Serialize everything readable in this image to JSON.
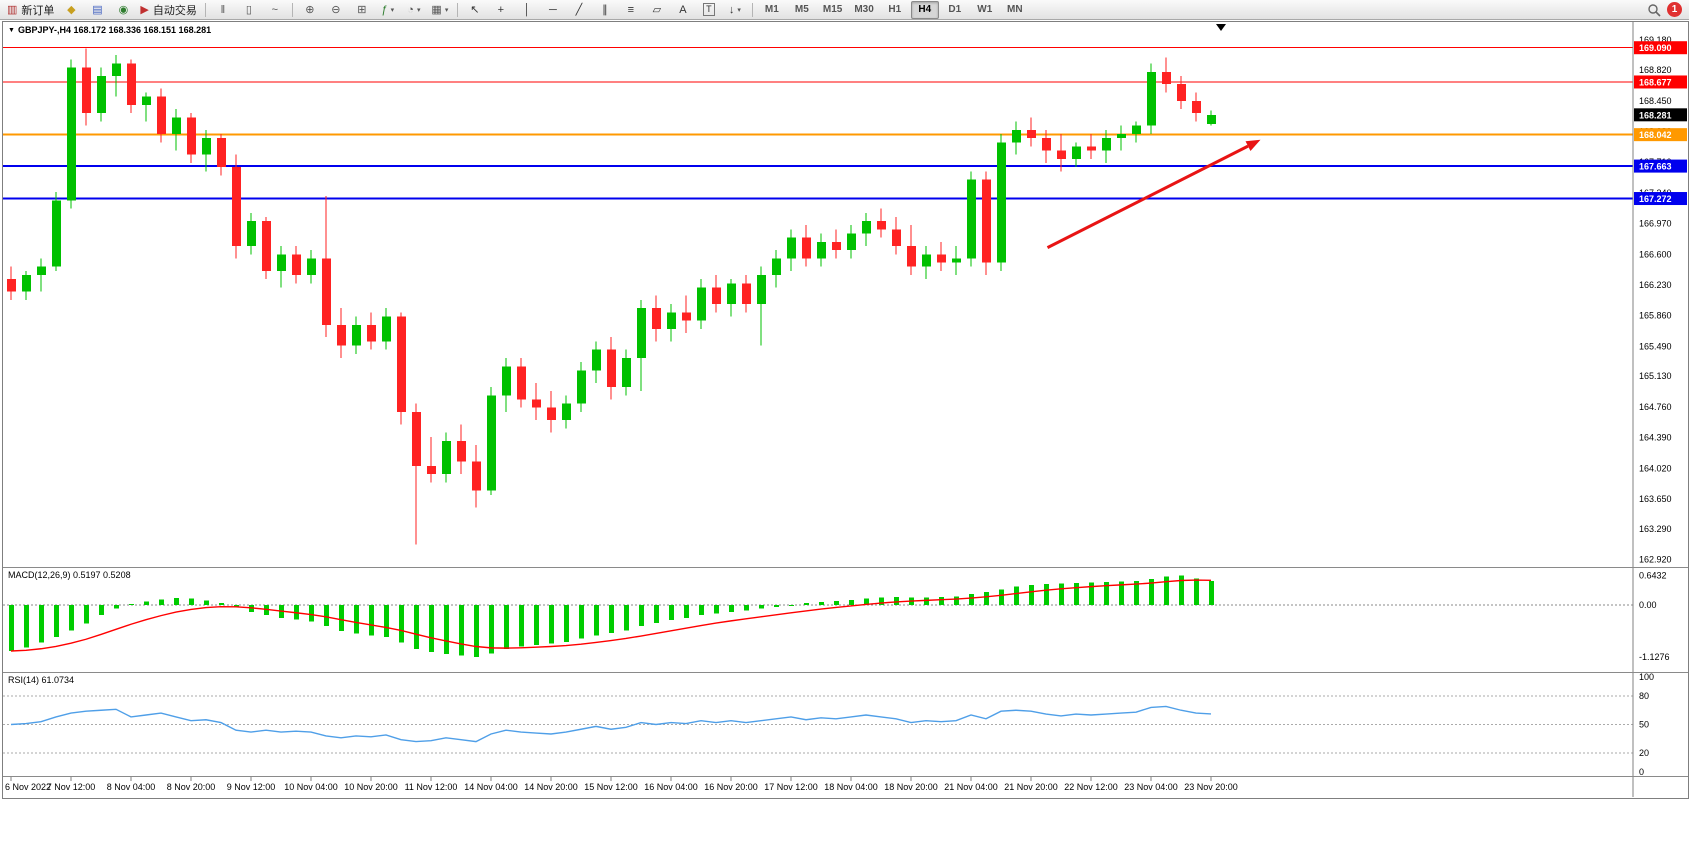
{
  "toolbar": {
    "notification_count": "1",
    "timeframes": [
      "M1",
      "M5",
      "M15",
      "M30",
      "H1",
      "H4",
      "D1",
      "W1",
      "MN"
    ],
    "active_timeframe": "H4",
    "items": [
      {
        "n": "new-order-button",
        "g": "▥",
        "c": "#b03030",
        "label": "新订单"
      },
      {
        "n": "chart-profiles-button",
        "g": "◆",
        "c": "#c8a020"
      },
      {
        "n": "data-window-button",
        "g": "▤",
        "c": "#4060c0"
      },
      {
        "n": "sound-alert-button",
        "g": "◉",
        "c": "#2f7d2f"
      },
      {
        "n": "autotrading-button",
        "g": "▶",
        "c": "#c03030",
        "label": "自动交易"
      },
      {
        "sep": true
      },
      {
        "n": "bars-chart-button",
        "g": "‖",
        "c": "#555555"
      },
      {
        "n": "candlestick-chart-button",
        "g": "▯",
        "c": "#555555"
      },
      {
        "n": "line-chart-button",
        "g": "~",
        "c": "#555555"
      },
      {
        "sep": true
      },
      {
        "n": "zoom-in-button",
        "g": "⊕",
        "c": "#555555"
      },
      {
        "n": "zoom-out-button",
        "g": "⊖",
        "c": "#555555"
      },
      {
        "n": "tile-windows-button",
        "g": "⊞",
        "c": "#555555"
      },
      {
        "n": "indicators-button",
        "g": "ƒ",
        "c": "#2f7d2f",
        "dd": true
      },
      {
        "n": "periods-button",
        "g": "◔",
        "c": "#555555",
        "dd": true
      },
      {
        "n": "templates-button",
        "g": "▦",
        "c": "#555555",
        "dd": true
      },
      {
        "sep": true
      },
      {
        "n": "cursor-button",
        "g": "↖",
        "c": "#333333"
      },
      {
        "n": "crosshair-button",
        "g": "+",
        "c": "#333333"
      },
      {
        "n": "vertical-line-button",
        "g": "│",
        "c": "#333333"
      },
      {
        "n": "horizontal-line-button",
        "g": "─",
        "c": "#333333"
      },
      {
        "n": "trendline-button",
        "g": "╱",
        "c": "#333333"
      },
      {
        "n": "channel-button",
        "g": "∥",
        "c": "#333333"
      },
      {
        "n": "fibonacci-button",
        "g": "≡",
        "c": "#333333"
      },
      {
        "n": "shapes-button",
        "g": "▱",
        "c": "#333333"
      },
      {
        "n": "text-button",
        "g": "A",
        "c": "#333333"
      },
      {
        "n": "text-label-button",
        "g": "T",
        "c": "#333333",
        "boxed": true
      },
      {
        "n": "arrows-button",
        "g": "↓",
        "c": "#333333",
        "dd": true
      },
      {
        "sep": true
      }
    ]
  },
  "chart": {
    "title": "GBPJPY-,H4  168.172 168.336 168.151 168.281"
  },
  "chart_data": {
    "type": "candlestick",
    "symbol": "GBPJPY-",
    "period": "H4",
    "current_ohlc": {
      "open": 168.172,
      "high": 168.336,
      "low": 168.151,
      "close": 168.281
    },
    "colors": {
      "up": "#00c000",
      "down": "#ff2222",
      "macd_histogram": "#00cc00",
      "macd_signal": "#ff0000",
      "rsi_line": "#4f9fe8"
    },
    "price_axis": {
      "max": 169.4,
      "min": 162.83,
      "labels": [
        "169.180",
        "168.820",
        "168.450",
        "168.080",
        "167.710",
        "167.340",
        "166.970",
        "166.600",
        "166.230",
        "165.860",
        "165.490",
        "165.130",
        "164.760",
        "164.390",
        "164.020",
        "163.650",
        "163.290",
        "162.920"
      ]
    },
    "x_labels": [
      "6 Nov 2022",
      "7 Nov 12:00",
      "8 Nov 04:00",
      "8 Nov 20:00",
      "9 Nov 12:00",
      "10 Nov 04:00",
      "10 Nov 20:00",
      "11 Nov 12:00",
      "14 Nov 04:00",
      "14 Nov 20:00",
      "15 Nov 12:00",
      "16 Nov 04:00",
      "16 Nov 20:00",
      "17 Nov 12:00",
      "18 Nov 04:00",
      "18 Nov 20:00",
      "21 Nov 04:00",
      "21 Nov 20:00",
      "22 Nov 12:00",
      "23 Nov 04:00",
      "23 Nov 20:00"
    ],
    "bars_per_label": 4,
    "candles": [
      [
        166.3,
        166.45,
        166.05,
        166.15
      ],
      [
        166.15,
        166.4,
        166.05,
        166.35
      ],
      [
        166.35,
        166.55,
        166.15,
        166.45
      ],
      [
        166.45,
        167.35,
        166.4,
        167.25
      ],
      [
        167.25,
        168.95,
        167.15,
        168.85
      ],
      [
        168.85,
        169.08,
        168.15,
        168.3
      ],
      [
        168.3,
        168.85,
        168.2,
        168.75
      ],
      [
        168.75,
        169.0,
        168.5,
        168.9
      ],
      [
        168.9,
        168.95,
        168.3,
        168.4
      ],
      [
        168.4,
        168.55,
        168.2,
        168.5
      ],
      [
        168.5,
        168.6,
        167.95,
        168.05
      ],
      [
        168.05,
        168.35,
        167.85,
        168.25
      ],
      [
        168.25,
        168.3,
        167.7,
        167.8
      ],
      [
        167.8,
        168.1,
        167.6,
        168.0
      ],
      [
        168.0,
        168.05,
        167.55,
        167.65
      ],
      [
        167.65,
        167.8,
        166.55,
        166.7
      ],
      [
        166.7,
        167.1,
        166.6,
        167.0
      ],
      [
        167.0,
        167.05,
        166.3,
        166.4
      ],
      [
        166.4,
        166.7,
        166.2,
        166.6
      ],
      [
        166.6,
        166.7,
        166.25,
        166.35
      ],
      [
        166.35,
        166.65,
        166.25,
        166.55
      ],
      [
        166.55,
        167.3,
        165.6,
        165.75
      ],
      [
        165.75,
        165.95,
        165.35,
        165.5
      ],
      [
        165.5,
        165.85,
        165.4,
        165.75
      ],
      [
        165.75,
        165.9,
        165.45,
        165.55
      ],
      [
        165.55,
        165.95,
        165.45,
        165.85
      ],
      [
        165.85,
        165.9,
        164.55,
        164.7
      ],
      [
        164.7,
        164.8,
        163.1,
        164.05
      ],
      [
        164.05,
        164.4,
        163.85,
        163.95
      ],
      [
        163.95,
        164.45,
        163.85,
        164.35
      ],
      [
        164.35,
        164.55,
        163.95,
        164.1
      ],
      [
        164.1,
        164.3,
        163.55,
        163.75
      ],
      [
        163.75,
        165.0,
        163.7,
        164.9
      ],
      [
        164.9,
        165.35,
        164.7,
        165.25
      ],
      [
        165.25,
        165.35,
        164.75,
        164.85
      ],
      [
        164.85,
        165.05,
        164.6,
        164.75
      ],
      [
        164.75,
        164.95,
        164.45,
        164.6
      ],
      [
        164.6,
        164.9,
        164.5,
        164.8
      ],
      [
        164.8,
        165.3,
        164.7,
        165.2
      ],
      [
        165.2,
        165.55,
        165.05,
        165.45
      ],
      [
        165.45,
        165.6,
        164.85,
        165.0
      ],
      [
        165.0,
        165.45,
        164.9,
        165.35
      ],
      [
        165.35,
        166.05,
        164.95,
        165.95
      ],
      [
        165.95,
        166.1,
        165.55,
        165.7
      ],
      [
        165.7,
        166.0,
        165.55,
        165.9
      ],
      [
        165.9,
        166.1,
        165.65,
        165.8
      ],
      [
        165.8,
        166.3,
        165.7,
        166.2
      ],
      [
        166.2,
        166.35,
        165.9,
        166.0
      ],
      [
        166.0,
        166.3,
        165.85,
        166.25
      ],
      [
        166.25,
        166.35,
        165.9,
        166.0
      ],
      [
        166.0,
        166.45,
        165.5,
        166.35
      ],
      [
        166.35,
        166.65,
        166.2,
        166.55
      ],
      [
        166.55,
        166.9,
        166.4,
        166.8
      ],
      [
        166.8,
        166.95,
        166.45,
        166.55
      ],
      [
        166.55,
        166.85,
        166.45,
        166.75
      ],
      [
        166.75,
        166.9,
        166.55,
        166.65
      ],
      [
        166.65,
        166.95,
        166.55,
        166.85
      ],
      [
        166.85,
        167.1,
        166.7,
        167.0
      ],
      [
        167.0,
        167.15,
        166.8,
        166.9
      ],
      [
        166.9,
        167.05,
        166.6,
        166.7
      ],
      [
        166.7,
        166.95,
        166.35,
        166.45
      ],
      [
        166.45,
        166.7,
        166.3,
        166.6
      ],
      [
        166.6,
        166.75,
        166.4,
        166.5
      ],
      [
        166.5,
        166.7,
        166.35,
        166.55
      ],
      [
        166.55,
        167.6,
        166.45,
        167.5
      ],
      [
        167.5,
        167.6,
        166.35,
        166.5
      ],
      [
        166.5,
        168.05,
        166.4,
        167.95
      ],
      [
        167.95,
        168.2,
        167.8,
        168.1
      ],
      [
        168.1,
        168.25,
        167.9,
        168.0
      ],
      [
        168.0,
        168.1,
        167.7,
        167.85
      ],
      [
        167.85,
        168.05,
        167.6,
        167.75
      ],
      [
        167.75,
        167.95,
        167.65,
        167.9
      ],
      [
        167.9,
        168.05,
        167.75,
        167.85
      ],
      [
        167.85,
        168.1,
        167.7,
        168.0
      ],
      [
        168.0,
        168.15,
        167.85,
        168.05
      ],
      [
        168.05,
        168.2,
        167.95,
        168.15
      ],
      [
        168.15,
        168.9,
        168.05,
        168.8
      ],
      [
        168.8,
        168.97,
        168.55,
        168.65
      ],
      [
        168.65,
        168.75,
        168.35,
        168.45
      ],
      [
        168.45,
        168.55,
        168.2,
        168.3
      ],
      [
        168.172,
        168.336,
        168.151,
        168.281
      ]
    ],
    "hlines": [
      {
        "price": 169.09,
        "label": "169.090",
        "color": "#ff0000",
        "width": 1
      },
      {
        "price": 168.677,
        "label": "168.677",
        "color": "#ff0000",
        "width": 1
      },
      {
        "price": 168.042,
        "label": "168.042",
        "color": "#ff9900",
        "width": 2
      },
      {
        "price": 167.663,
        "label": "167.663",
        "color": "#0000ee",
        "width": 2
      },
      {
        "price": 167.272,
        "label": "167.272",
        "color": "#0000ee",
        "width": 2
      }
    ],
    "current_price": {
      "price": 168.281,
      "label": "168.281",
      "color": "#000000"
    },
    "trend_arrow": {
      "from_bar": 69.1,
      "from_price": 166.68,
      "to_bar": 83.3,
      "to_price": 167.98,
      "color": "#e81414"
    },
    "indicators": [
      {
        "name": "MACD",
        "label": "MACD(12,26,9) 0.5197 0.5208",
        "axis_labels": [
          "0.6432",
          "0.00",
          "-1.1276"
        ],
        "scale_max": 0.6432,
        "scale_min": -1.1276,
        "histogram": [
          -1.0,
          -0.92,
          -0.82,
          -0.7,
          -0.55,
          -0.4,
          -0.22,
          -0.08,
          0.02,
          0.08,
          0.12,
          0.15,
          0.14,
          0.1,
          0.04,
          -0.05,
          -0.15,
          -0.22,
          -0.28,
          -0.32,
          -0.36,
          -0.46,
          -0.56,
          -0.62,
          -0.66,
          -0.7,
          -0.82,
          -0.96,
          -1.02,
          -1.06,
          -1.1,
          -1.13,
          -1.05,
          -0.96,
          -0.9,
          -0.87,
          -0.84,
          -0.8,
          -0.73,
          -0.66,
          -0.61,
          -0.55,
          -0.46,
          -0.39,
          -0.33,
          -0.28,
          -0.22,
          -0.18,
          -0.15,
          -0.12,
          -0.08,
          -0.04,
          0.0,
          0.04,
          0.07,
          0.09,
          0.11,
          0.14,
          0.16,
          0.17,
          0.16,
          0.16,
          0.17,
          0.19,
          0.24,
          0.28,
          0.34,
          0.4,
          0.44,
          0.46,
          0.47,
          0.48,
          0.49,
          0.5,
          0.51,
          0.52,
          0.57,
          0.62,
          0.64,
          0.58,
          0.52
        ]
      },
      {
        "name": "RSI",
        "label": "RSI(14) 61.0734",
        "axis_labels": [
          "100",
          "80",
          "50",
          "20",
          "0"
        ],
        "levels": [
          80,
          50,
          20
        ],
        "values": [
          50,
          51,
          53,
          58,
          62,
          64,
          65,
          66,
          58,
          60,
          62,
          58,
          54,
          55,
          52,
          44,
          42,
          44,
          42,
          43,
          42,
          38,
          36,
          38,
          37,
          39,
          34,
          32,
          33,
          36,
          34,
          32,
          40,
          44,
          42,
          41,
          40,
          42,
          45,
          48,
          45,
          47,
          52,
          50,
          52,
          51,
          54,
          52,
          54,
          52,
          54,
          56,
          58,
          55,
          57,
          56,
          58,
          60,
          58,
          56,
          52,
          54,
          53,
          54,
          60,
          56,
          64,
          65,
          64,
          61,
          59,
          61,
          60,
          61,
          62,
          63,
          68,
          69,
          65,
          62,
          61.07
        ]
      }
    ]
  }
}
